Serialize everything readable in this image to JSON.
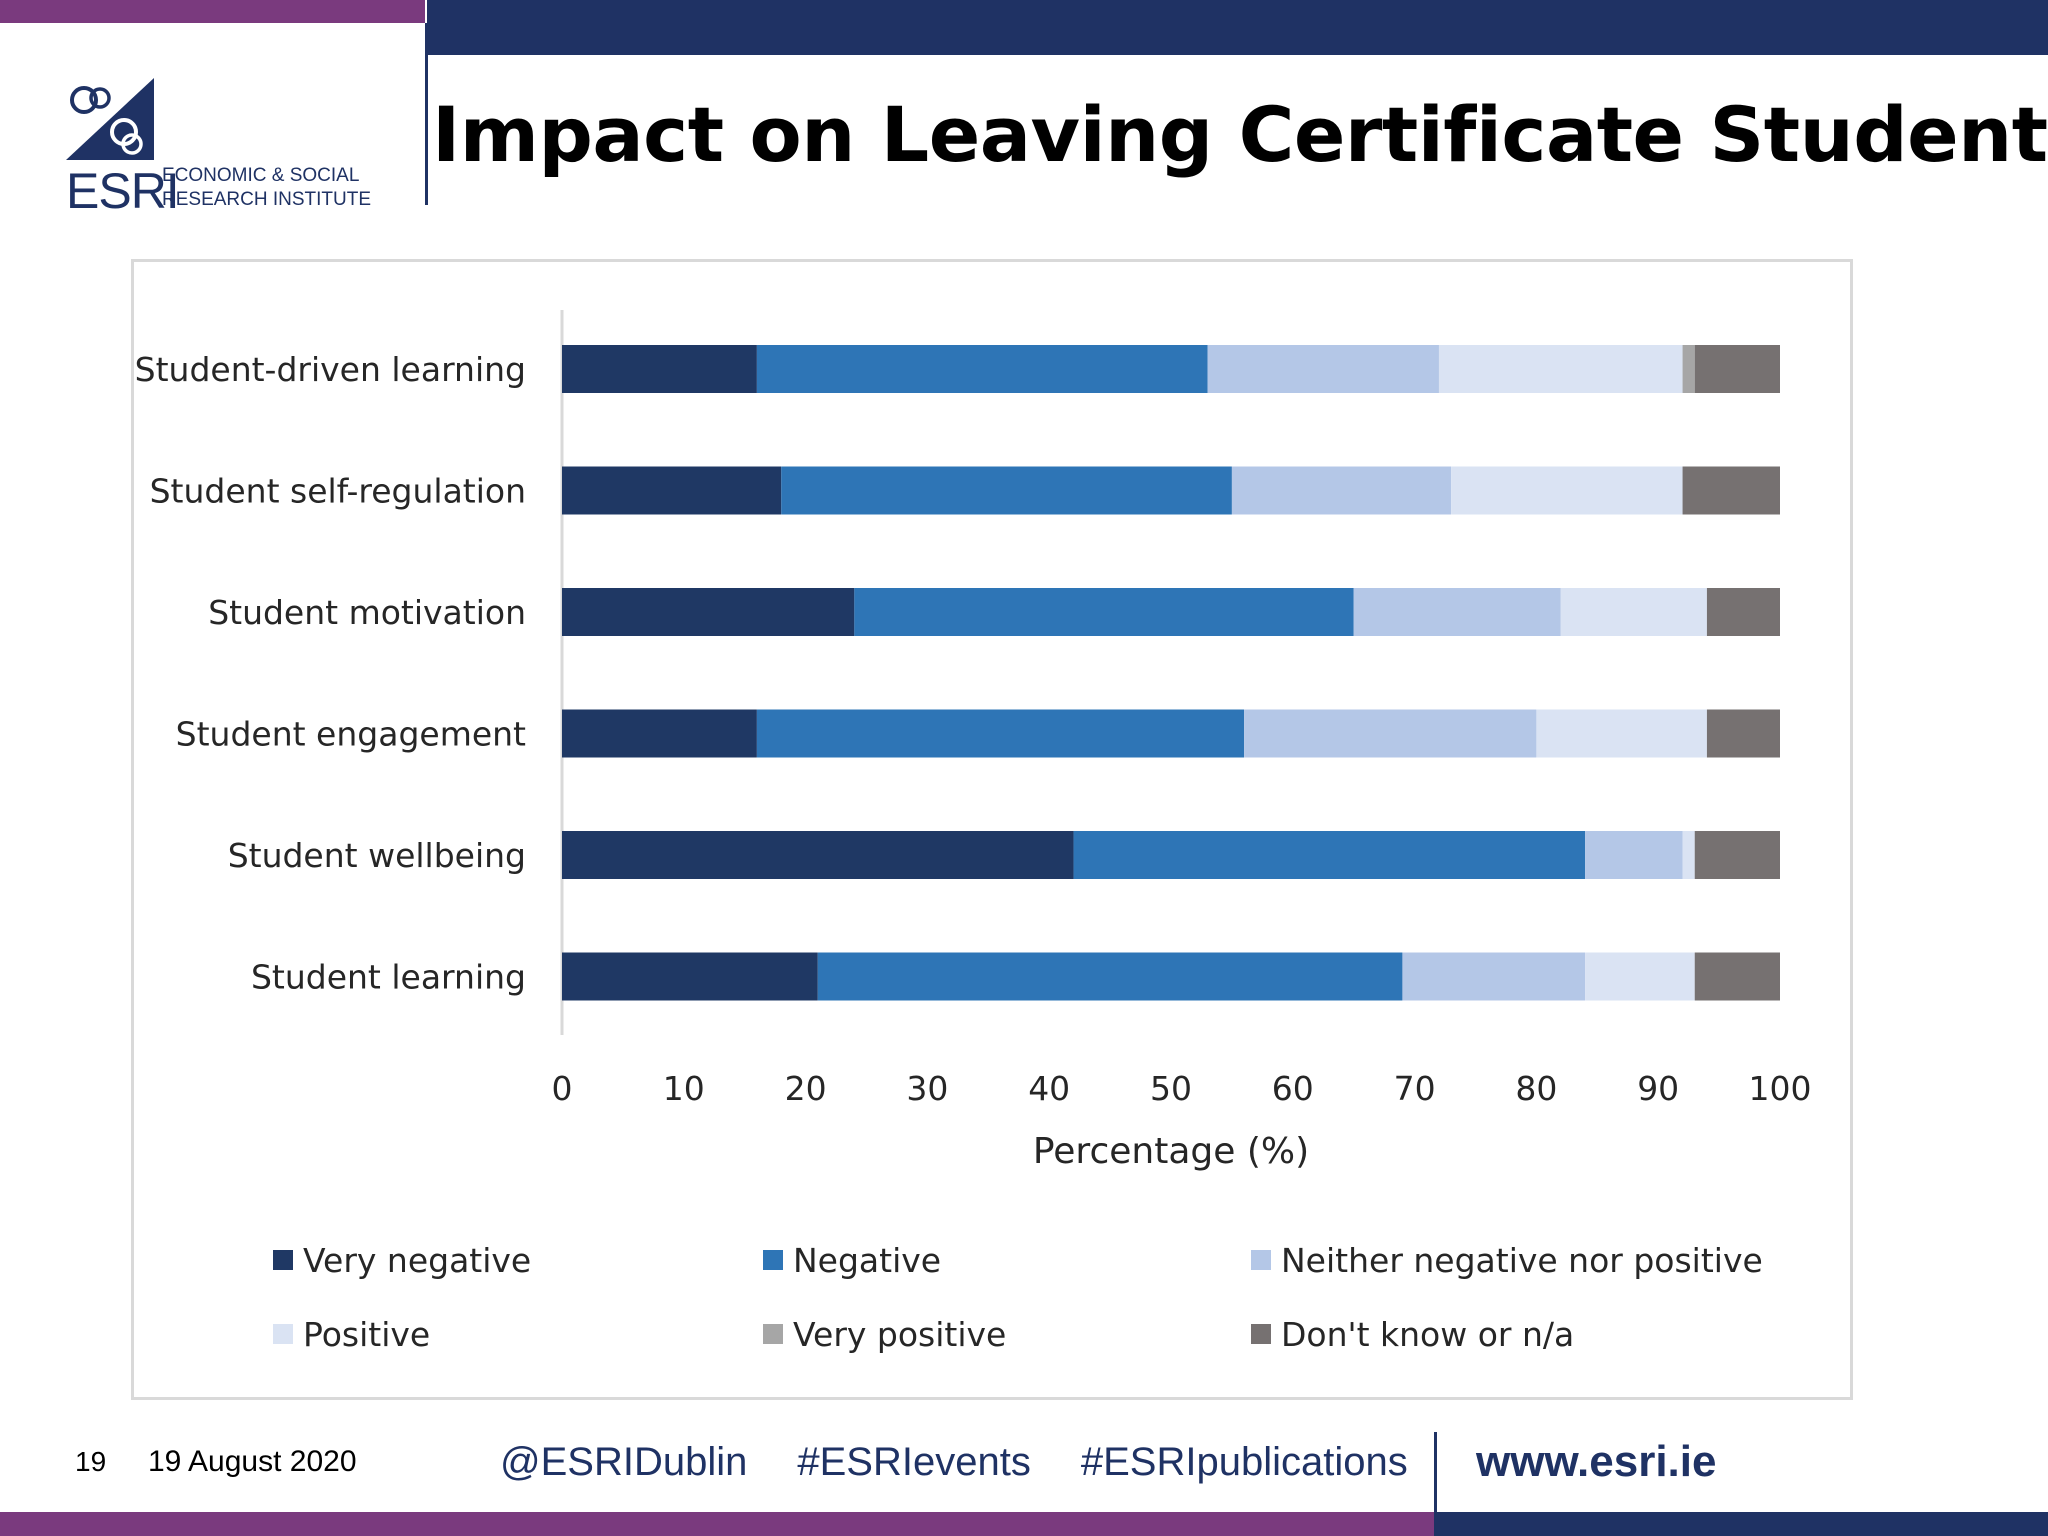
{
  "header": {
    "title": "Impact on Leaving Certificate Students",
    "logo_word": "ESRI",
    "logo_line1": "ECONOMIC & SOCIAL",
    "logo_line2": "RESEARCH INSTITUTE"
  },
  "colors": {
    "brand_navy": "#1f3264",
    "brand_purple": "#7a3a7e",
    "very_negative": "#1f3864",
    "negative": "#2e75b6",
    "neither": "#b4c7e7",
    "positive": "#dae3f3",
    "very_positive": "#a6a6a6",
    "dont_know": "#767171"
  },
  "chart_data": {
    "type": "bar",
    "orientation": "horizontal",
    "stacked": true,
    "title": "",
    "xlabel": "Percentage (%)",
    "ylabel": "",
    "xlim": [
      0,
      100
    ],
    "xticks": [
      0,
      10,
      20,
      30,
      40,
      50,
      60,
      70,
      80,
      90,
      100
    ],
    "grid": false,
    "legend_position": "bottom",
    "categories": [
      "Student-driven learning",
      "Student self-regulation",
      "Student motivation",
      "Student engagement",
      "Student wellbeing",
      "Student learning"
    ],
    "series": [
      {
        "name": "Very negative",
        "color": "#1f3864",
        "values": [
          16,
          18,
          24,
          16,
          42,
          21
        ]
      },
      {
        "name": "Negative",
        "color": "#2e75b6",
        "values": [
          37,
          37,
          41,
          40,
          42,
          48
        ]
      },
      {
        "name": "Neither negative nor positive",
        "color": "#b4c7e7",
        "values": [
          19,
          18,
          17,
          24,
          8,
          15
        ]
      },
      {
        "name": "Positive",
        "color": "#dae3f3",
        "values": [
          20,
          19,
          12,
          14,
          1,
          9
        ]
      },
      {
        "name": "Very positive",
        "color": "#a6a6a6",
        "values": [
          1,
          0,
          0,
          0,
          0,
          0
        ]
      },
      {
        "name": "Don't know or n/a",
        "color": "#767171",
        "values": [
          7,
          8,
          6,
          6,
          7,
          7
        ]
      }
    ]
  },
  "footer": {
    "page_number": "19",
    "date": "19 August 2020",
    "twitter": "@ESRIDublin",
    "hashtag_events": "#ESRIevents",
    "hashtag_publications": "#ESRIpublications",
    "website": "www.esri.ie"
  }
}
